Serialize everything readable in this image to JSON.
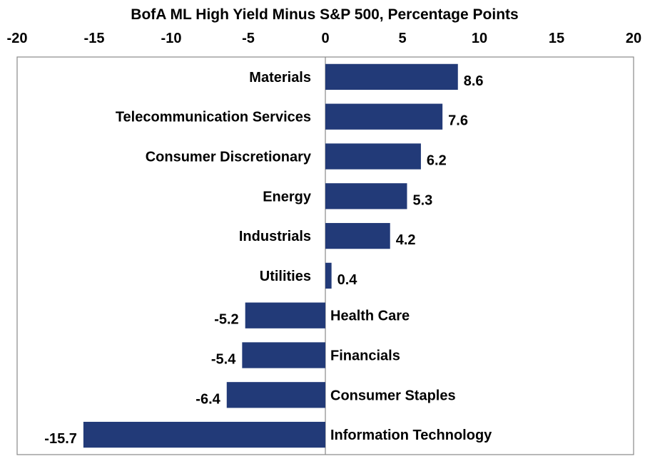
{
  "chart_data": {
    "type": "bar",
    "orientation": "horizontal",
    "title": "BofA ML High Yield Minus S&P 500, Percentage Points",
    "xlim": [
      -20,
      20
    ],
    "xticks": [
      "-20",
      "-15",
      "-10",
      "-5",
      "0",
      "5",
      "10",
      "15",
      "20"
    ],
    "xtick_values": [
      -20,
      -15,
      -10,
      -5,
      0,
      5,
      10,
      15,
      20
    ],
    "axis_position": "top",
    "grid": false,
    "categories": [
      "Materials",
      "Telecommunication Services",
      "Consumer Discretionary",
      "Energy",
      "Industrials",
      "Utilities",
      "Health Care",
      "Financials",
      "Consumer Staples",
      "Information Technology"
    ],
    "values": [
      8.6,
      7.6,
      6.2,
      5.3,
      4.2,
      0.4,
      -5.2,
      -5.4,
      -6.4,
      -15.7
    ],
    "value_labels": [
      "8.6",
      "7.6",
      "6.2",
      "5.3",
      "4.2",
      "0.4",
      "-5.2",
      "-5.4",
      "-6.4",
      "-15.7"
    ],
    "bar_color": "#223a78"
  }
}
